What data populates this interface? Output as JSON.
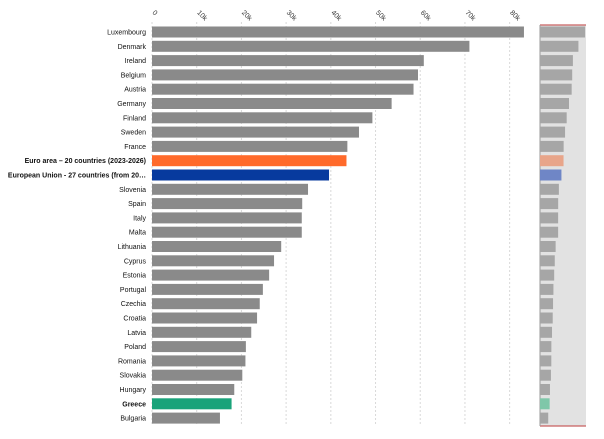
{
  "chart_data": {
    "type": "bar",
    "orientation": "horizontal",
    "categories": [
      "Luxembourg",
      "Denmark",
      "Ireland",
      "Belgium",
      "Austria",
      "Germany",
      "Finland",
      "Sweden",
      "France",
      "Euro area – 20 countries (2023-2026)",
      "European Union - 27 countries (from 20…",
      "Slovenia",
      "Spain",
      "Italy",
      "Malta",
      "Lithuania",
      "Cyprus",
      "Estonia",
      "Portugal",
      "Czechia",
      "Croatia",
      "Latvia",
      "Poland",
      "Romania",
      "Slovakia",
      "Hungary",
      "Greece",
      "Bulgaria"
    ],
    "values": [
      83200,
      71000,
      60800,
      59500,
      58500,
      53600,
      49300,
      46300,
      43700,
      43500,
      39600,
      34900,
      33600,
      33500,
      33500,
      28900,
      27300,
      26200,
      24800,
      24100,
      23500,
      22200,
      21000,
      20900,
      20200,
      18400,
      17800,
      15200
    ],
    "highlights": {
      "Euro area – 20 countries (2023-2026)": "#ff6a2b",
      "European Union - 27 countries (from 20…": "#073a9e",
      "Greece": "#1aa37a"
    },
    "bold_labels": [
      "Euro area – 20 countries (2023-2026)",
      "European Union - 27 countries (from 20…",
      "Greece"
    ],
    "default_color": "#8a8a8a",
    "x_ticks": [
      0,
      10000,
      20000,
      30000,
      40000,
      50000,
      60000,
      70000,
      80000
    ],
    "x_tick_labels": [
      "0",
      "10k",
      "20k",
      "30k",
      "40k",
      "50k",
      "60k",
      "70k",
      "80k"
    ],
    "xlim": [
      0,
      85000
    ],
    "grid": true,
    "title": "",
    "xlabel": "",
    "ylabel": ""
  },
  "overview": {
    "panel_color": "#e2e2e2",
    "default_bar_color": "#a6a6a6",
    "highlight_colors": {
      "Euro area – 20 countries (2023-2026)": "#e8a58a",
      "European Union - 27 countries (from 20…": "#6f86c6",
      "Greece": "#7fc7a9"
    }
  }
}
